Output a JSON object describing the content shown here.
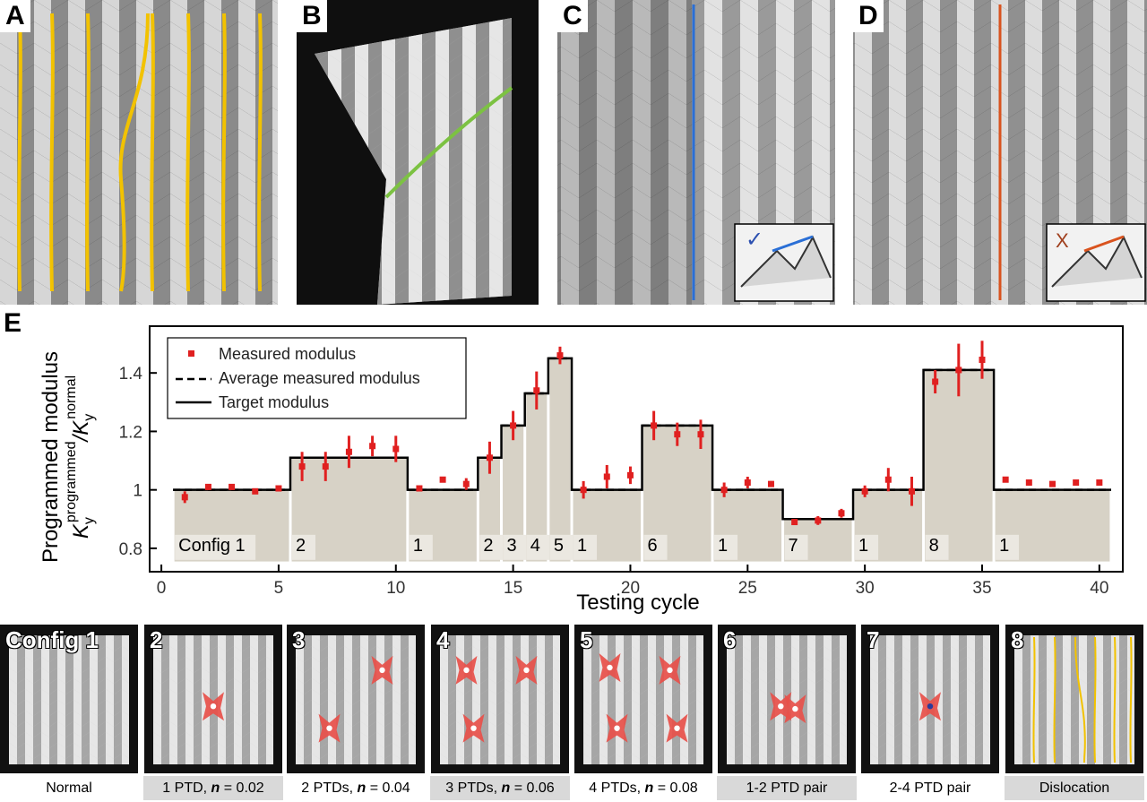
{
  "panels": {
    "A": {
      "letter": "A"
    },
    "B": {
      "letter": "B"
    },
    "C": {
      "letter": "C"
    },
    "D": {
      "letter": "D"
    },
    "E": {
      "letter": "E"
    }
  },
  "inset_marks": {
    "check": "✓",
    "cross": "X"
  },
  "colors": {
    "yellow_line": "#f2c200",
    "green_line": "#7cc242",
    "blue_line": "#2a6fd6",
    "orange_line": "#d9531e",
    "measured": "#e02020",
    "fill": "#d7d2c6",
    "ptd": "#e8504a"
  },
  "chart_data": {
    "type": "line",
    "xlabel": "Testing cycle",
    "ylabel_line1": "Programmed modulus",
    "ylabel_line2_parts": [
      "K",
      "y",
      "programmed",
      "/K",
      "y",
      "normal"
    ],
    "xlim": [
      -0.5,
      41
    ],
    "ylim": [
      0.72,
      1.56
    ],
    "xticks": [
      0,
      5,
      10,
      15,
      20,
      25,
      30,
      35,
      40
    ],
    "yticks": [
      0.8,
      1,
      1.2,
      1.4
    ],
    "ytick_labels": [
      "0.8",
      "1",
      "1.2",
      "1.4"
    ],
    "legend": {
      "placement": "top-left",
      "entries": [
        "Measured modulus",
        "Average measured modulus",
        "Target modulus"
      ]
    },
    "segments": [
      {
        "label": "Config 1",
        "x0": 0.5,
        "x1": 5.5,
        "target": 1.0,
        "avg": 1.0
      },
      {
        "label": "2",
        "x0": 5.5,
        "x1": 10.5,
        "target": 1.11,
        "avg": 1.11
      },
      {
        "label": "1",
        "x0": 10.5,
        "x1": 13.5,
        "target": 1.0,
        "avg": 1.0
      },
      {
        "label": "2",
        "x0": 13.5,
        "x1": 14.5,
        "target": 1.11,
        "avg": 1.11
      },
      {
        "label": "3",
        "x0": 14.5,
        "x1": 15.5,
        "target": 1.22,
        "avg": 1.22
      },
      {
        "label": "4",
        "x0": 15.5,
        "x1": 16.5,
        "target": 1.33,
        "avg": 1.33
      },
      {
        "label": "5",
        "x0": 16.5,
        "x1": 17.5,
        "target": 1.45,
        "avg": 1.45
      },
      {
        "label": "1",
        "x0": 17.5,
        "x1": 20.5,
        "target": 1.0,
        "avg": 1.0
      },
      {
        "label": "6",
        "x0": 20.5,
        "x1": 23.5,
        "target": 1.22,
        "avg": 1.22
      },
      {
        "label": "1",
        "x0": 23.5,
        "x1": 26.5,
        "target": 1.0,
        "avg": 1.0
      },
      {
        "label": "7",
        "x0": 26.5,
        "x1": 29.5,
        "target": 0.9,
        "avg": 0.9
      },
      {
        "label": "1",
        "x0": 29.5,
        "x1": 32.5,
        "target": 1.0,
        "avg": 1.0
      },
      {
        "label": "8",
        "x0": 32.5,
        "x1": 35.5,
        "target": 1.41,
        "avg": 1.41
      },
      {
        "label": "1",
        "x0": 35.5,
        "x1": 40.5,
        "target": 1.0,
        "avg": 1.0
      }
    ],
    "measured": [
      {
        "x": 1,
        "y": 0.975,
        "err": 0.02
      },
      {
        "x": 2,
        "y": 1.01,
        "err": 0.01
      },
      {
        "x": 3,
        "y": 1.01,
        "err": 0.005
      },
      {
        "x": 4,
        "y": 0.995,
        "err": 0.01
      },
      {
        "x": 5,
        "y": 1.005,
        "err": 0.005
      },
      {
        "x": 6,
        "y": 1.08,
        "err": 0.05
      },
      {
        "x": 7,
        "y": 1.08,
        "err": 0.05
      },
      {
        "x": 8,
        "y": 1.13,
        "err": 0.055
      },
      {
        "x": 9,
        "y": 1.15,
        "err": 0.035
      },
      {
        "x": 10,
        "y": 1.14,
        "err": 0.045
      },
      {
        "x": 11,
        "y": 1.005,
        "err": 0.005
      },
      {
        "x": 12,
        "y": 1.035,
        "err": 0.01
      },
      {
        "x": 13,
        "y": 1.02,
        "err": 0.02
      },
      {
        "x": 14,
        "y": 1.11,
        "err": 0.055
      },
      {
        "x": 15,
        "y": 1.22,
        "err": 0.05
      },
      {
        "x": 16,
        "y": 1.34,
        "err": 0.065
      },
      {
        "x": 17,
        "y": 1.46,
        "err": 0.03
      },
      {
        "x": 18,
        "y": 1.0,
        "err": 0.03
      },
      {
        "x": 19,
        "y": 1.045,
        "err": 0.04
      },
      {
        "x": 20,
        "y": 1.05,
        "err": 0.03
      },
      {
        "x": 21,
        "y": 1.22,
        "err": 0.05
      },
      {
        "x": 22,
        "y": 1.19,
        "err": 0.04
      },
      {
        "x": 23,
        "y": 1.19,
        "err": 0.05
      },
      {
        "x": 24,
        "y": 1.0,
        "err": 0.025
      },
      {
        "x": 25,
        "y": 1.025,
        "err": 0.02
      },
      {
        "x": 26,
        "y": 1.02,
        "err": 0.01
      },
      {
        "x": 27,
        "y": 0.89,
        "err": 0.01
      },
      {
        "x": 28,
        "y": 0.895,
        "err": 0.015
      },
      {
        "x": 29,
        "y": 0.92,
        "err": 0.015
      },
      {
        "x": 30,
        "y": 0.995,
        "err": 0.02
      },
      {
        "x": 31,
        "y": 1.035,
        "err": 0.04
      },
      {
        "x": 32,
        "y": 0.995,
        "err": 0.05
      },
      {
        "x": 33,
        "y": 1.37,
        "err": 0.04
      },
      {
        "x": 34,
        "y": 1.41,
        "err": 0.09
      },
      {
        "x": 35,
        "y": 1.445,
        "err": 0.065
      },
      {
        "x": 36,
        "y": 1.035,
        "err": 0.01
      },
      {
        "x": 37,
        "y": 1.025,
        "err": 0.005
      },
      {
        "x": 38,
        "y": 1.02,
        "err": 0.005
      },
      {
        "x": 39,
        "y": 1.025,
        "err": 0.005
      },
      {
        "x": 40,
        "y": 1.025,
        "err": 0.005
      }
    ]
  },
  "thumbnails": [
    {
      "label": "Config 1",
      "caption": "Normal",
      "caption_n": "",
      "ptds": []
    },
    {
      "label": "2",
      "caption": "1 PTD, ",
      "caption_n": "0.02",
      "ptds": [
        [
          0.5,
          0.55
        ]
      ]
    },
    {
      "label": "3",
      "caption": "2 PTDs, ",
      "caption_n": "0.04",
      "ptds": [
        [
          0.72,
          0.27
        ],
        [
          0.28,
          0.72
        ]
      ]
    },
    {
      "label": "4",
      "caption": "3 PTDs, ",
      "caption_n": "0.06",
      "ptds": [
        [
          0.22,
          0.27
        ],
        [
          0.72,
          0.27
        ],
        [
          0.28,
          0.72
        ]
      ]
    },
    {
      "label": "5",
      "caption": "4 PTDs, ",
      "caption_n": "0.08",
      "ptds": [
        [
          0.22,
          0.25
        ],
        [
          0.72,
          0.27
        ],
        [
          0.28,
          0.72
        ],
        [
          0.78,
          0.72
        ]
      ]
    },
    {
      "label": "6",
      "caption": "1-2 PTD pair",
      "caption_n": "",
      "ptds": [
        [
          0.45,
          0.55
        ],
        [
          0.57,
          0.57
        ]
      ]
    },
    {
      "label": "7",
      "caption": "2-4 PTD pair",
      "caption_n": "",
      "ptds": [
        [
          0.5,
          0.55
        ]
      ]
    },
    {
      "label": "8",
      "caption": "Dislocation",
      "caption_n": "",
      "ptds": []
    }
  ],
  "n_symbol": "n",
  "eq_text": " = "
}
